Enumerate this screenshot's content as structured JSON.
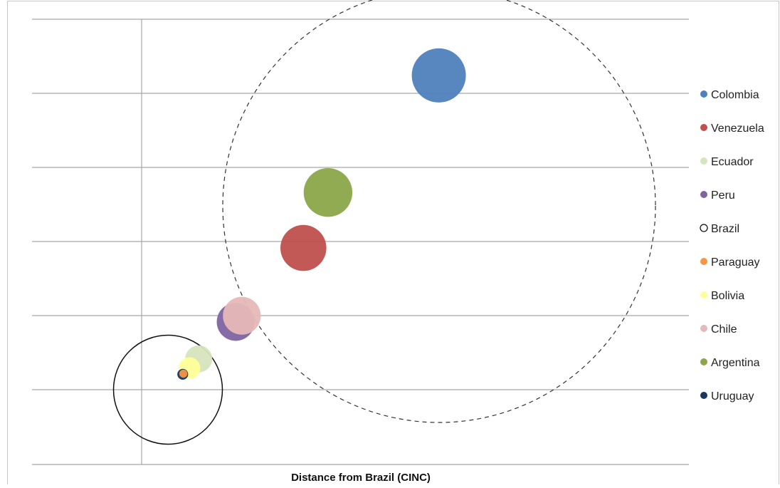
{
  "chart_data": {
    "type": "scatter",
    "subtype": "bubble",
    "xlabel": "Distance from Brazil (CINC)",
    "ylabel": "",
    "grid": "horizontal",
    "legend_placement": "right",
    "series": [
      {
        "name": "Colombia",
        "color": "#4f81bd",
        "x": 0.44,
        "y": 0.51,
        "size": 1.0
      },
      {
        "name": "Venezuela",
        "color": "#c0504d",
        "x": 0.22,
        "y": 0.23,
        "size": 0.85
      },
      {
        "name": "Ecuador",
        "color": "#d7e4bd",
        "x": 0.05,
        "y": 0.05,
        "size": 0.5
      },
      {
        "name": "Peru",
        "color": "#8064a2",
        "x": 0.11,
        "y": 0.11,
        "size": 0.7
      },
      {
        "name": "Brazil",
        "color": "#ffffff",
        "x": 0.0,
        "y": 0.0,
        "size": 2.0,
        "style": "outline"
      },
      {
        "name": "Paraguay",
        "color": "#f79646",
        "x": 0.025,
        "y": 0.026,
        "size": 0.15
      },
      {
        "name": "Bolivia",
        "color": "#ffff99",
        "x": 0.035,
        "y": 0.035,
        "size": 0.4
      },
      {
        "name": "Chile",
        "color": "#e6b9b8",
        "x": 0.12,
        "y": 0.12,
        "size": 0.7
      },
      {
        "name": "Argentina",
        "color": "#8ba64a",
        "x": 0.26,
        "y": 0.32,
        "size": 0.9
      },
      {
        "name": "Uruguay",
        "color": "#17375e",
        "x": 0.024,
        "y": 0.025,
        "size": 0.2
      }
    ]
  }
}
